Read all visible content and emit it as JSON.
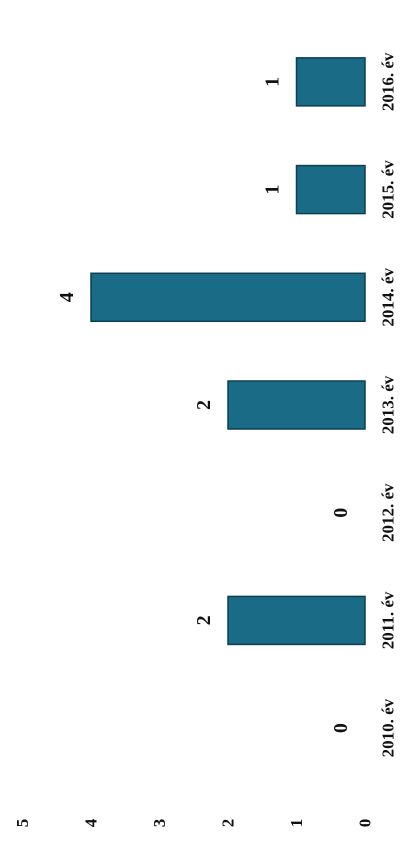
{
  "chart_data": {
    "type": "bar",
    "orientation": "horizontal (rotated scan: bars grow leftward from the 0 baseline)",
    "categories": [
      "2010. év",
      "2011. év",
      "2012. év",
      "2013. év",
      "2014. év",
      "2015. év",
      "2016. év"
    ],
    "values": [
      0,
      2,
      0,
      2,
      4,
      1,
      1
    ],
    "data_labels": [
      "0",
      "2",
      "0",
      "2",
      "4",
      "1",
      "1"
    ],
    "ylim": [
      0,
      5
    ],
    "ticks": [
      "0",
      "1",
      "2",
      "3",
      "4",
      "5"
    ],
    "grid": false,
    "legend": "none",
    "colors": {
      "bar": "#1a6b85",
      "bar_edge": "#0d3f52",
      "text": "#111111"
    }
  }
}
